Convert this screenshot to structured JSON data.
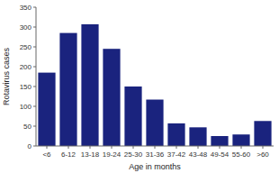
{
  "chart_data": {
    "type": "bar",
    "categories": [
      "<6",
      "6-12",
      "13-18",
      "19-24",
      "25-30",
      "31-36",
      "37-42",
      "43-48",
      "49-54",
      "55-60",
      ">60"
    ],
    "values": [
      185,
      285,
      307,
      245,
      150,
      117,
      57,
      47,
      25,
      29,
      63
    ],
    "color": "#1a237e",
    "xlabel": "Age in months",
    "ylabel": "Rotavirus cases",
    "ylim": [
      0,
      350
    ],
    "yticks": [
      0,
      50,
      100,
      150,
      200,
      250,
      300,
      350
    ]
  }
}
